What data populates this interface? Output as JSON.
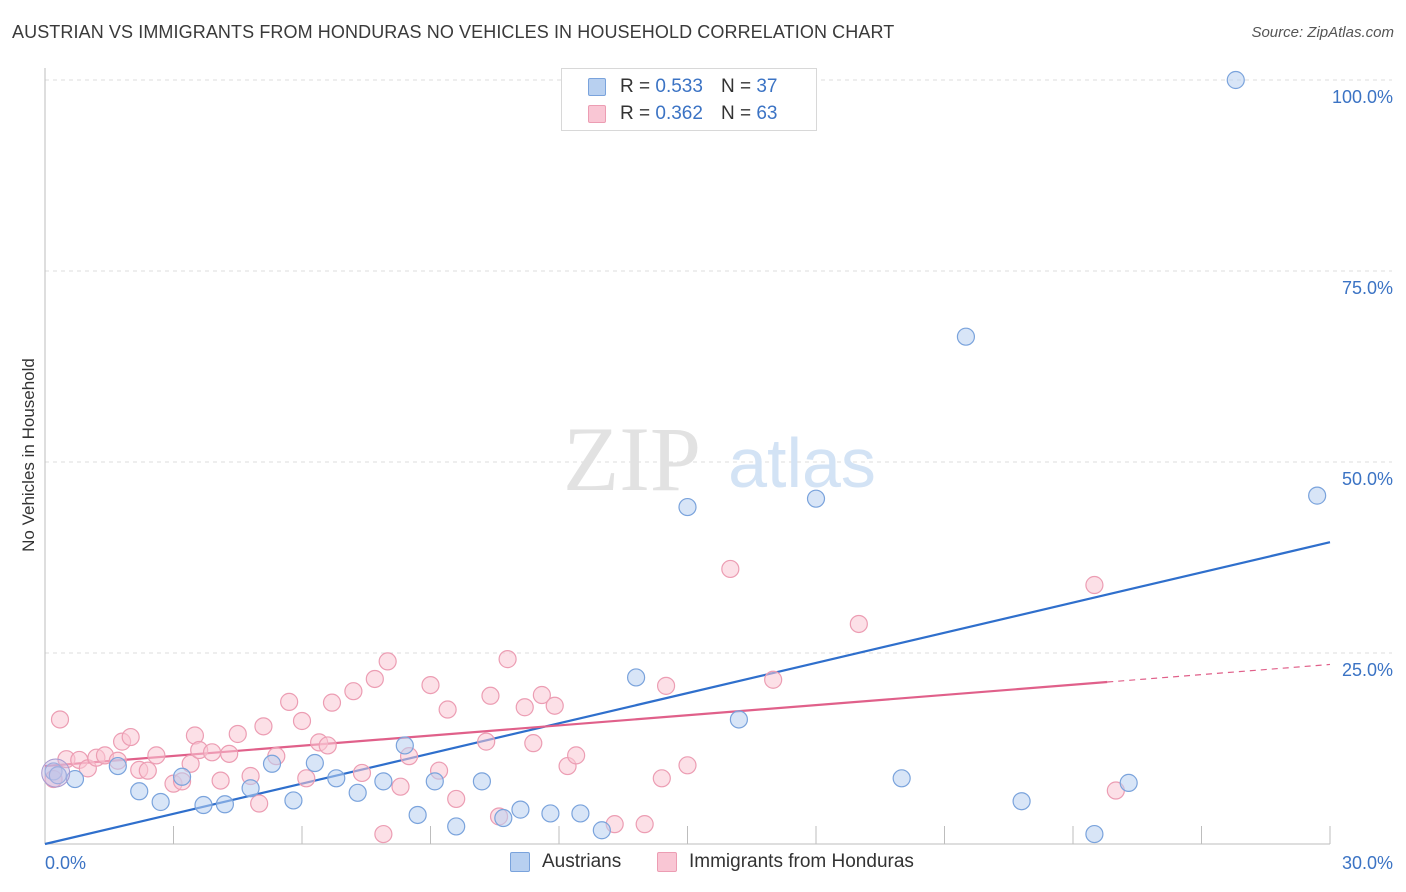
{
  "title": "AUSTRIAN VS IMMIGRANTS FROM HONDURAS NO VEHICLES IN HOUSEHOLD CORRELATION CHART",
  "source": "Source: ZipAtlas.com",
  "watermark": {
    "zip": "ZIP",
    "atlas": "atlas"
  },
  "legend": {
    "r_label": "R =",
    "n_label": "N =",
    "rows": [
      {
        "r": "0.533",
        "n": "37",
        "color": "#b8d0f0",
        "border": "#7aa3dc"
      },
      {
        "r": "0.362",
        "n": "63",
        "color": "#f9c6d4",
        "border": "#ec9db3"
      }
    ]
  },
  "bottom_legend": [
    {
      "label": "Austrians",
      "color": "#b8d0f0",
      "border": "#7aa3dc"
    },
    {
      "label": "Immigrants from Honduras",
      "color": "#f9c6d4",
      "border": "#ec9db3"
    }
  ],
  "chart_data": {
    "type": "scatter",
    "title": "AUSTRIAN VS IMMIGRANTS FROM HONDURAS NO VEHICLES IN HOUSEHOLD CORRELATION CHART",
    "xlabel": "",
    "ylabel": "No Vehicles in Household",
    "xlim": [
      0,
      30
    ],
    "ylim": [
      0,
      100
    ],
    "x_tick_labels": [
      "0.0%",
      "30.0%"
    ],
    "y_tick_values": [
      25,
      50,
      75,
      100
    ],
    "y_tick_labels": [
      "25.0%",
      "50.0%",
      "75.0%",
      "100.0%"
    ],
    "grid": true,
    "legend_position": "top-center",
    "series": [
      {
        "name": "Austrians",
        "color": "#7aa3dc",
        "fill": "#b8d0f0",
        "line_color": "#2f6fcc",
        "trend": {
          "x0": 0,
          "y0": 0,
          "x1": 30,
          "y1": 39.5
        },
        "points": [
          [
            0.2,
            9.5
          ],
          [
            0.7,
            8.5
          ],
          [
            1.7,
            10.2
          ],
          [
            2.2,
            6.9
          ],
          [
            2.7,
            5.5
          ],
          [
            3.2,
            8.8
          ],
          [
            3.7,
            5.1
          ],
          [
            4.2,
            5.2
          ],
          [
            4.8,
            7.3
          ],
          [
            5.3,
            10.5
          ],
          [
            5.8,
            5.7
          ],
          [
            6.3,
            10.6
          ],
          [
            6.8,
            8.6
          ],
          [
            7.3,
            6.7
          ],
          [
            7.9,
            8.2
          ],
          [
            8.4,
            12.9
          ],
          [
            8.7,
            3.8
          ],
          [
            9.1,
            8.2
          ],
          [
            9.6,
            2.3
          ],
          [
            10.2,
            8.2
          ],
          [
            10.7,
            3.4
          ],
          [
            11.1,
            4.5
          ],
          [
            11.8,
            4.0
          ],
          [
            12.5,
            4.0
          ],
          [
            13.0,
            1.8
          ],
          [
            13.8,
            21.8
          ],
          [
            15.0,
            44.1
          ],
          [
            16.2,
            16.3
          ],
          [
            18.0,
            45.2
          ],
          [
            20.0,
            8.6
          ],
          [
            21.5,
            66.4
          ],
          [
            22.8,
            5.6
          ],
          [
            24.5,
            1.3
          ],
          [
            25.3,
            8.0
          ],
          [
            27.8,
            100.0
          ],
          [
            29.7,
            45.6
          ],
          [
            0.3,
            9.0
          ]
        ]
      },
      {
        "name": "Immigrants from Honduras",
        "color": "#ec9db3",
        "fill": "#f9c6d4",
        "line_color": "#e0608a",
        "trend": {
          "x0": 0,
          "y0": 10.2,
          "x1": 24.8,
          "y1": 21.2
        },
        "trend_dashed": {
          "x0": 24.8,
          "y0": 21.2,
          "x1": 30,
          "y1": 23.5
        },
        "points": [
          [
            0.2,
            8.5
          ],
          [
            0.35,
            16.3
          ],
          [
            0.5,
            11.1
          ],
          [
            0.8,
            11.0
          ],
          [
            1.0,
            9.9
          ],
          [
            1.2,
            11.3
          ],
          [
            1.4,
            11.6
          ],
          [
            1.7,
            10.9
          ],
          [
            1.8,
            13.4
          ],
          [
            2.0,
            14.0
          ],
          [
            2.2,
            9.7
          ],
          [
            2.4,
            9.6
          ],
          [
            2.6,
            11.6
          ],
          [
            3.0,
            7.9
          ],
          [
            3.2,
            8.2
          ],
          [
            3.4,
            10.5
          ],
          [
            3.5,
            14.2
          ],
          [
            3.6,
            12.3
          ],
          [
            3.9,
            12.0
          ],
          [
            4.1,
            8.3
          ],
          [
            4.3,
            11.8
          ],
          [
            4.5,
            14.4
          ],
          [
            4.8,
            8.9
          ],
          [
            5.0,
            5.3
          ],
          [
            5.1,
            15.4
          ],
          [
            5.4,
            11.5
          ],
          [
            5.7,
            18.6
          ],
          [
            6.0,
            16.1
          ],
          [
            6.1,
            8.6
          ],
          [
            6.4,
            13.3
          ],
          [
            6.6,
            12.9
          ],
          [
            6.7,
            18.5
          ],
          [
            7.2,
            20.0
          ],
          [
            7.4,
            9.3
          ],
          [
            7.7,
            21.6
          ],
          [
            7.9,
            1.3
          ],
          [
            8.0,
            23.9
          ],
          [
            8.3,
            7.5
          ],
          [
            8.5,
            11.5
          ],
          [
            9.0,
            20.8
          ],
          [
            9.2,
            9.6
          ],
          [
            9.4,
            17.6
          ],
          [
            9.6,
            5.9
          ],
          [
            10.3,
            13.4
          ],
          [
            10.4,
            19.4
          ],
          [
            10.6,
            3.6
          ],
          [
            10.8,
            24.2
          ],
          [
            11.2,
            17.9
          ],
          [
            11.4,
            13.2
          ],
          [
            11.6,
            19.5
          ],
          [
            11.9,
            18.1
          ],
          [
            12.2,
            10.2
          ],
          [
            12.4,
            11.6
          ],
          [
            13.3,
            2.6
          ],
          [
            14.0,
            2.6
          ],
          [
            14.4,
            8.6
          ],
          [
            14.5,
            20.7
          ],
          [
            15.0,
            10.3
          ],
          [
            16.0,
            36.0
          ],
          [
            17.0,
            21.5
          ],
          [
            19.0,
            28.8
          ],
          [
            24.5,
            33.9
          ],
          [
            25.0,
            7.0
          ]
        ]
      }
    ]
  }
}
